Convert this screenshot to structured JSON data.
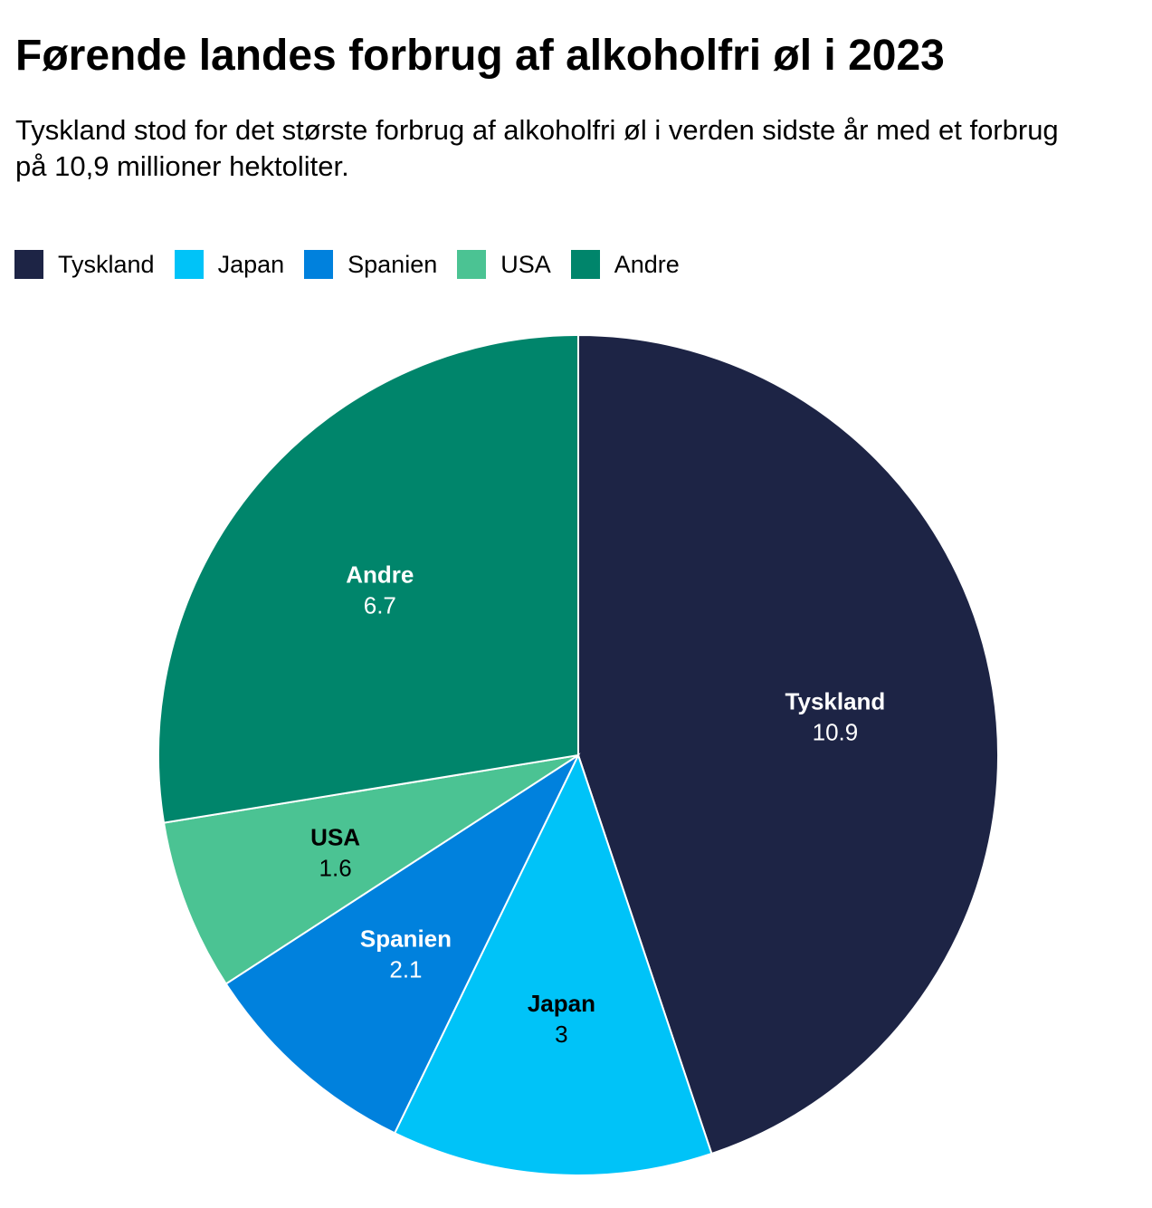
{
  "title": "Førende landes forbrug af alkoholfri øl i 2023",
  "subtitle": "Tyskland stod for det største forbrug af alkoholfri øl i verden sidste år med et forbrug på 10,9 millioner hektoliter.",
  "chart_data": {
    "type": "pie",
    "title": "Førende landes forbrug af alkoholfri øl i 2023",
    "legend_position": "top-left",
    "start_angle": "12 o'clock",
    "direction": "clockwise",
    "categories": [
      "Tyskland",
      "Japan",
      "Spanien",
      "USA",
      "Andre"
    ],
    "values": [
      10.9,
      3,
      2.1,
      1.6,
      6.7
    ],
    "value_labels": [
      "10.9",
      "3",
      "2.1",
      "1.6",
      "6.7"
    ],
    "colors": [
      "#1d2445",
      "#00c3f8",
      "#0081dd",
      "#4bc393",
      "#00856b"
    ],
    "label_colors": [
      "#ffffff",
      "#000000",
      "#ffffff",
      "#000000",
      "#ffffff"
    ]
  }
}
